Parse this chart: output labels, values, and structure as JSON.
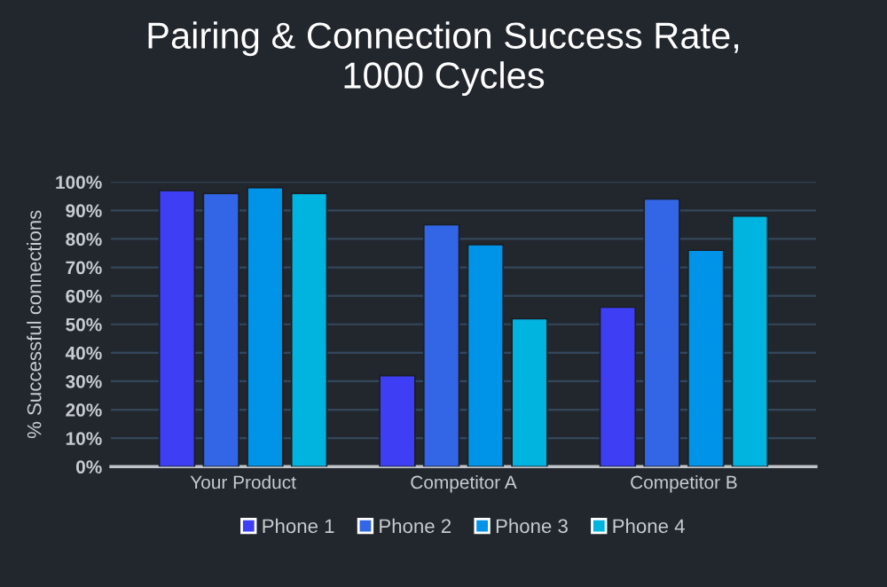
{
  "chart_data": {
    "type": "bar",
    "title": "Pairing & Connection Success Rate,\n1000 Cycles",
    "ylabel": "% Successful connections",
    "categories": [
      "Your Product",
      "Competitor A",
      "Competitor B"
    ],
    "series": [
      {
        "name": "Phone 1",
        "color": "#3e3ef5",
        "values": [
          97,
          32,
          56
        ]
      },
      {
        "name": "Phone 2",
        "color": "#3366e6",
        "values": [
          96,
          85,
          94
        ]
      },
      {
        "name": "Phone 3",
        "color": "#0094e8",
        "values": [
          98,
          78,
          76
        ]
      },
      {
        "name": "Phone 4",
        "color": "#00b4e0",
        "values": [
          96,
          52,
          88
        ]
      }
    ],
    "ylim": [
      0,
      100
    ],
    "yticks": [
      {
        "value": 0,
        "label": "0%"
      },
      {
        "value": 10,
        "label": "10%"
      },
      {
        "value": 20,
        "label": "20%"
      },
      {
        "value": 30,
        "label": "30%"
      },
      {
        "value": 40,
        "label": "40%"
      },
      {
        "value": 50,
        "label": "50%"
      },
      {
        "value": 60,
        "label": "60%"
      },
      {
        "value": 70,
        "label": "70%"
      },
      {
        "value": 80,
        "label": "80%"
      },
      {
        "value": 90,
        "label": "90%"
      },
      {
        "value": 100,
        "label": "100%"
      }
    ],
    "grid": "y",
    "legend": "bottom"
  }
}
